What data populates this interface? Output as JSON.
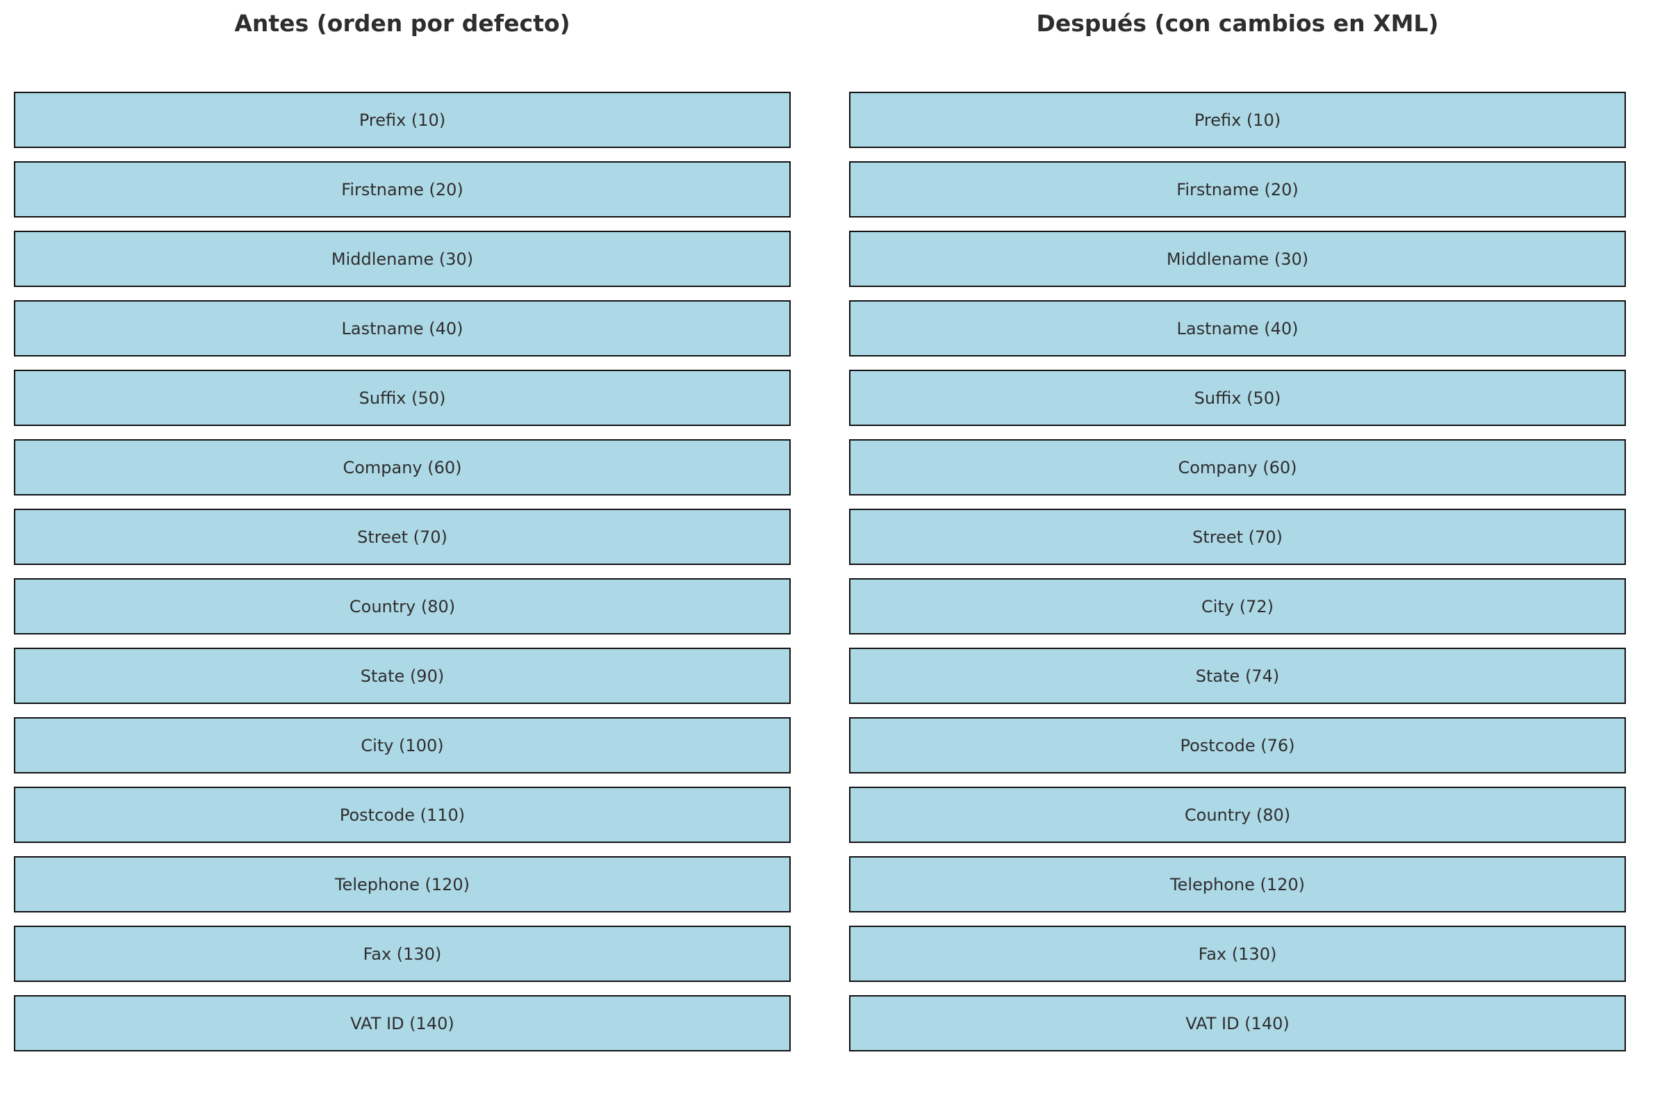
{
  "panels": [
    {
      "title": "Antes (orden por defecto)",
      "fields": [
        "Prefix (10)",
        "Firstname (20)",
        "Middlename (30)",
        "Lastname (40)",
        "Suffix (50)",
        "Company (60)",
        "Street (70)",
        "Country (80)",
        "State (90)",
        "City (100)",
        "Postcode (110)",
        "Telephone (120)",
        "Fax (130)",
        "VAT ID (140)"
      ]
    },
    {
      "title": "Después (con cambios en XML)",
      "fields": [
        "Prefix (10)",
        "Firstname (20)",
        "Middlename (30)",
        "Lastname (40)",
        "Suffix (50)",
        "Company (60)",
        "Street (70)",
        "City (72)",
        "State (74)",
        "Postcode (76)",
        "Country (80)",
        "Telephone (120)",
        "Fax (130)",
        "VAT ID (140)"
      ]
    }
  ],
  "colors": {
    "box_fill": "#add8e6",
    "box_border": "#111111",
    "text": "#2e2e2e"
  }
}
